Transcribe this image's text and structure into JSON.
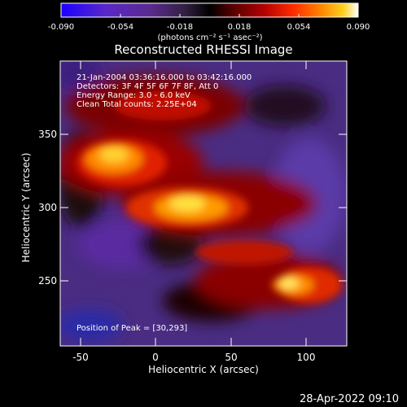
{
  "colorbar": {
    "ticks": [
      "-0.090",
      "-0.054",
      "-0.018",
      "0.018",
      "0.054",
      "0.090"
    ],
    "units_label": "(photons cm⁻² s⁻¹ asec⁻²)",
    "colors": [
      "#1a00ff",
      "#5a28c8",
      "#5a2a8e",
      "#302040",
      "#000000",
      "#5a0000",
      "#b00000",
      "#ff2a00",
      "#ff8a00",
      "#ffd020",
      "#ffffff"
    ]
  },
  "image": {
    "title": "Reconstructed RHESSI Image",
    "info_lines": [
      "21-Jan-2004 03:36:16.000 to 03:42:16.000",
      "Detectors: 3F 4F 5F 6F 7F 8F, Att 0",
      "Energy Range: 3.0 - 6.0 keV",
      "Clean    Total counts: 2.25E+04"
    ],
    "peak_label": "Position of Peak = [30,293]",
    "x_ticks": [
      "-50",
      "0",
      "50",
      "100"
    ],
    "y_ticks": [
      "250",
      "300",
      "350"
    ],
    "xlabel": "Heliocentric X (arcsec)",
    "ylabel": "Heliocentric Y (arcsec)",
    "xlim": [
      -65,
      125
    ],
    "ylim": [
      205,
      385
    ]
  },
  "footer": {
    "timestamp": "28-Apr-2022 09:10"
  }
}
